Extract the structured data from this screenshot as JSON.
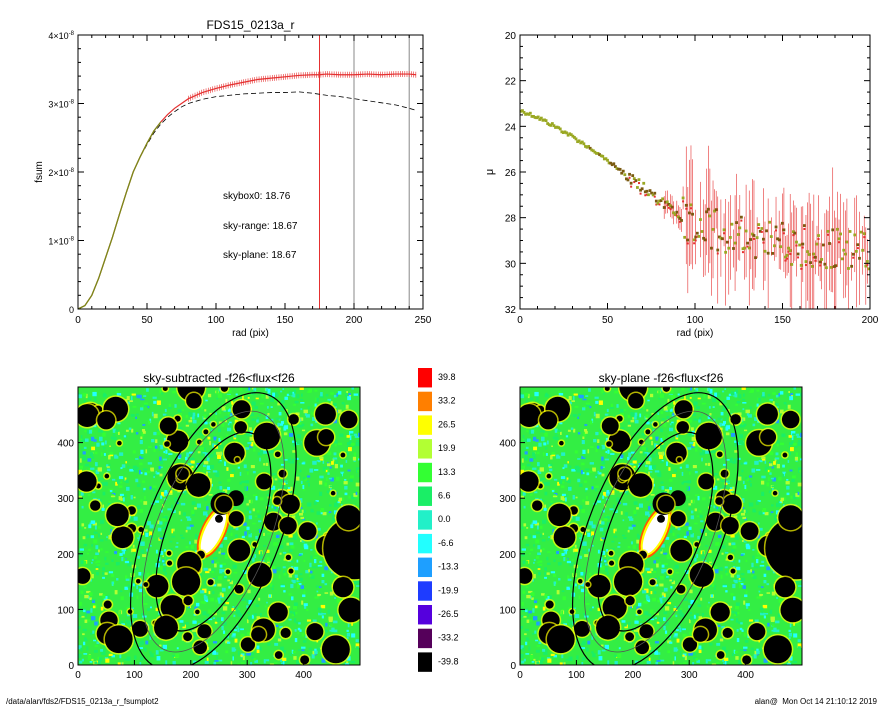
{
  "footer": {
    "path": "/data/alan/fds2/FDS15_0213a_r_fsumplot2",
    "user": "alan@",
    "timestamp": "Mon Oct 14 21:10:12 2019"
  },
  "chart_data": [
    {
      "id": "fsum",
      "type": "line",
      "title": "FDS15_0213a_r",
      "xlabel": "rad (pix)",
      "ylabel": "fsum",
      "xlim": [
        0,
        250
      ],
      "ylim": [
        0,
        4e-08
      ],
      "xticks": [
        "0",
        "50",
        "100",
        "150",
        "200",
        "250"
      ],
      "yticks": [
        {
          "value": 0,
          "mantissa": "0",
          "exp": ""
        },
        {
          "value": 1e-08,
          "mantissa": "1×10",
          "exp": "-8"
        },
        {
          "value": 2e-08,
          "mantissa": "2×10",
          "exp": "-8"
        },
        {
          "value": 3e-08,
          "mantissa": "3×10",
          "exp": "-8"
        },
        {
          "value": 4e-08,
          "mantissa": "4×10",
          "exp": "-8"
        }
      ],
      "vlines": [
        {
          "x": 175,
          "color": "#e53030"
        },
        {
          "x": 200,
          "color": "#888888"
        },
        {
          "x": 240,
          "color": "#888888"
        }
      ],
      "annotations": [
        {
          "text": "skybox0: 18.76",
          "color": "#000000"
        },
        {
          "text": "sky-range: 18.67",
          "color": "#e53030"
        },
        {
          "text": "sky-plane: 18.67",
          "color": "#22dd22"
        }
      ],
      "series": [
        {
          "style": "solid-red",
          "x": [
            0,
            5,
            10,
            15,
            20,
            25,
            30,
            35,
            40,
            45,
            50,
            55,
            60,
            65,
            70,
            75,
            80,
            90,
            100,
            110,
            120,
            130,
            140,
            150,
            160,
            170,
            175,
            180,
            190,
            200,
            210,
            220,
            230,
            240,
            245
          ],
          "y": [
            0,
            5e-10,
            2e-09,
            4.5e-09,
            7.5e-09,
            1.05e-08,
            1.38e-08,
            1.7e-08,
            2e-08,
            2.22e-08,
            2.42e-08,
            2.6e-08,
            2.73e-08,
            2.84e-08,
            2.93e-08,
            3e-08,
            3.07e-08,
            3.16e-08,
            3.22e-08,
            3.27e-08,
            3.31e-08,
            3.35e-08,
            3.37e-08,
            3.39e-08,
            3.41e-08,
            3.42e-08,
            3.42e-08,
            3.43e-08,
            3.42e-08,
            3.42e-08,
            3.43e-08,
            3.42e-08,
            3.43e-08,
            3.43e-08,
            3.42e-08
          ]
        },
        {
          "style": "dashed-black",
          "x": [
            0,
            5,
            10,
            15,
            20,
            25,
            30,
            35,
            40,
            45,
            50,
            55,
            60,
            65,
            70,
            75,
            80,
            90,
            100,
            110,
            120,
            130,
            140,
            150,
            160,
            170,
            180,
            190,
            200,
            210,
            220,
            230,
            240,
            245
          ],
          "y": [
            0,
            5e-10,
            2e-09,
            4.5e-09,
            7.5e-09,
            1.05e-08,
            1.38e-08,
            1.7e-08,
            2e-08,
            2.22e-08,
            2.4e-08,
            2.57e-08,
            2.7e-08,
            2.8e-08,
            2.88e-08,
            2.95e-08,
            3e-08,
            3.06e-08,
            3.1e-08,
            3.12e-08,
            3.14e-08,
            3.15e-08,
            3.16e-08,
            3.16e-08,
            3.17e-08,
            3.15e-08,
            3.12e-08,
            3.1e-08,
            3.07e-08,
            3.04e-08,
            3.01e-08,
            2.98e-08,
            2.93e-08,
            2.9e-08
          ]
        }
      ]
    },
    {
      "id": "mu",
      "type": "scatter",
      "title": "",
      "xlabel": "rad (pix)",
      "ylabel": "μ",
      "xlim": [
        0,
        200
      ],
      "ylim": [
        32,
        20
      ],
      "xticks": [
        "0",
        "50",
        "100",
        "150",
        "200"
      ],
      "yticks": [
        "20",
        "22",
        "24",
        "26",
        "28",
        "30",
        "32"
      ],
      "profile": {
        "x": [
          0,
          10,
          20,
          30,
          40,
          50,
          60,
          70,
          80,
          90,
          100,
          120,
          140,
          160,
          180,
          200
        ],
        "y": [
          23.3,
          23.6,
          24.0,
          24.45,
          24.95,
          25.5,
          26.1,
          26.7,
          27.3,
          27.8,
          28.3,
          28.7,
          29.0,
          29.2,
          29.4,
          29.5
        ]
      }
    },
    {
      "id": "map-subtracted",
      "type": "heatmap",
      "title": "sky-subtracted -f26<flux<f26",
      "xlim": [
        0,
        500
      ],
      "ylim": [
        0,
        500
      ],
      "xticks": [
        "0",
        "100",
        "200",
        "300",
        "400"
      ],
      "yticks": [
        "0",
        "100",
        "200",
        "300",
        "400"
      ]
    },
    {
      "id": "map-plane",
      "type": "heatmap",
      "title": "sky-plane -f26<flux<f26",
      "xlim": [
        0,
        500
      ],
      "ylim": [
        0,
        500
      ],
      "xticks": [
        "0",
        "100",
        "200",
        "300",
        "400"
      ],
      "yticks": [
        "0",
        "100",
        "200",
        "300",
        "400"
      ]
    },
    {
      "id": "colorbar",
      "type": "colorbar",
      "levels": [
        "39.8",
        "33.2",
        "26.5",
        "19.9",
        "13.3",
        "6.6",
        "0.0",
        "-6.6",
        "-13.3",
        "-19.9",
        "-26.5",
        "-33.2",
        "-39.8"
      ],
      "colors": [
        "#ff0000",
        "#ff7f00",
        "#ffff00",
        "#b2ff33",
        "#33ff33",
        "#1aee66",
        "#22f0c8",
        "#22ffff",
        "#1e9fff",
        "#1e3cff",
        "#5500dd",
        "#55005a",
        "#000000"
      ]
    }
  ]
}
